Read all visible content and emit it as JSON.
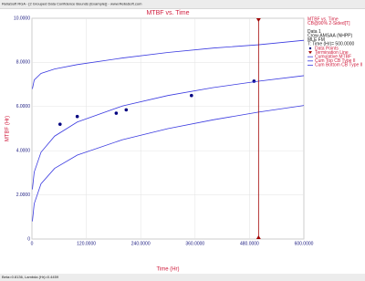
{
  "window_title": "ReliaSoft RGA - [2 Grouped Data Confidence Bounds (Example)] - www.ReliaSoft.com",
  "status_text": "Beta=0.8136, Lambda (Hr)=0.4459",
  "chart_data": {
    "type": "line",
    "title": "MTBF vs. Time",
    "x_label": "Time (Hr)",
    "y_label": "MTBF (Hr)",
    "xlim": [
      0,
      600
    ],
    "ylim": [
      0,
      10
    ],
    "xticks": [
      0,
      {
        "value": 120,
        "label": "120.0000"
      },
      {
        "value": 240,
        "label": "240.0000"
      },
      {
        "value": 360,
        "label": "360.0000"
      },
      {
        "value": 480,
        "label": "480.0000"
      },
      {
        "value": 600,
        "label": "600.0000"
      }
    ],
    "yticks": [
      0,
      {
        "value": 2,
        "label": "2.0000"
      },
      {
        "value": 4,
        "label": "4.0000"
      },
      {
        "value": 6,
        "label": "6.0000"
      },
      {
        "value": 8,
        "label": "8.0000"
      },
      {
        "value": 10,
        "label": "10.0000"
      }
    ],
    "grid": true,
    "legend_header": [
      "MTBF vs. Time",
      "CB@90% 2-Sided[T]",
      "Data 1",
      "Crow-AMSAA (NHPP)",
      "MLE FM",
      "T: Time (Hr)= 500.0000"
    ],
    "termination": {
      "name": "Termination Line",
      "value": 500,
      "color": "#a00000"
    },
    "series": [
      {
        "name": "Data Points",
        "kind": "scatter",
        "color": "#000080",
        "x": [
          62,
          100,
          186,
          208,
          352,
          490
        ],
        "values": [
          5.2,
          5.55,
          5.7,
          5.85,
          6.5,
          7.15
        ]
      },
      {
        "name": "Cumulative MTBF",
        "kind": "line",
        "color": "#3a3ae0",
        "x": [
          1,
          5,
          20,
          50,
          100,
          200,
          300,
          400,
          500,
          600
        ],
        "values": [
          2.25,
          3.03,
          3.93,
          4.66,
          5.3,
          6.03,
          6.5,
          6.86,
          7.15,
          7.4
        ]
      },
      {
        "name": "Cum Top CB Type II",
        "kind": "line",
        "color": "#3a3ae0",
        "x": [
          1,
          5,
          20,
          50,
          100,
          200,
          300,
          400,
          500,
          600
        ],
        "values": [
          6.8,
          7.2,
          7.5,
          7.7,
          7.9,
          8.2,
          8.45,
          8.65,
          8.8,
          9.0
        ]
      },
      {
        "name": "Cum Bottom CB Type II",
        "kind": "line",
        "color": "#3a3ae0",
        "x": [
          1,
          5,
          20,
          50,
          100,
          200,
          300,
          400,
          500,
          600
        ],
        "values": [
          0.8,
          1.6,
          2.5,
          3.2,
          3.8,
          4.5,
          5.0,
          5.4,
          5.75,
          6.05
        ]
      }
    ]
  }
}
